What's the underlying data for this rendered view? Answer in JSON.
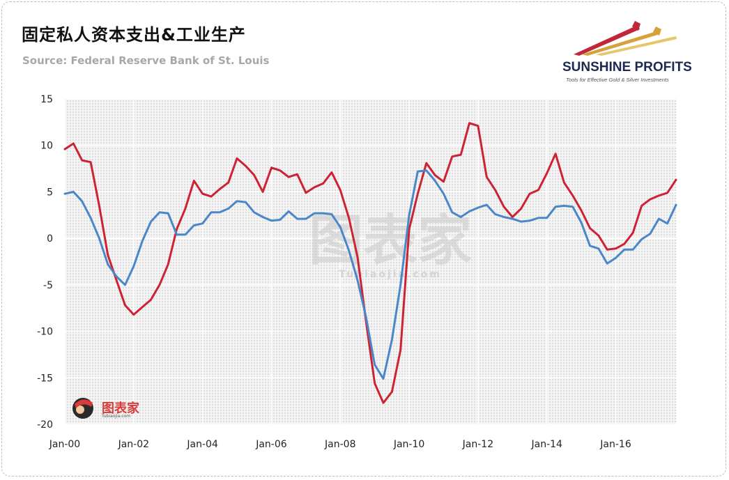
{
  "header": {
    "title": "固定私人资本支出&工业生产",
    "source": "Source: Federal Reserve Bank of St. Louis"
  },
  "logo": {
    "name": "SUNSHINE PROFITS",
    "tagline": "Tools for Effective Gold & Silver Investments"
  },
  "watermark": {
    "text": "图表家",
    "sub": "Tubiaojia.com"
  },
  "colors": {
    "series_red": "#cc2233",
    "series_blue": "#4a86c8",
    "plot_bg": "#eeeeee",
    "gridline": "#ffffff"
  },
  "chart_data": {
    "type": "line",
    "title": "固定私人资本支出&工业生产",
    "xlabel": "",
    "ylabel": "",
    "ylim": [
      -20,
      15
    ],
    "yticks": [
      15,
      10,
      5,
      0,
      -5,
      -10,
      -15,
      -20
    ],
    "xlim": [
      2000.0,
      2017.75
    ],
    "xticks": [
      {
        "x": 2000,
        "label": "Jan-00"
      },
      {
        "x": 2002,
        "label": "Jan-02"
      },
      {
        "x": 2004,
        "label": "Jan-04"
      },
      {
        "x": 2006,
        "label": "Jan-06"
      },
      {
        "x": 2008,
        "label": "Jan-08"
      },
      {
        "x": 2010,
        "label": "Jan-10"
      },
      {
        "x": 2012,
        "label": "Jan-12"
      },
      {
        "x": 2014,
        "label": "Jan-14"
      },
      {
        "x": 2016,
        "label": "Jan-16"
      }
    ],
    "grid": true,
    "legend": "none",
    "x": [
      2000.0,
      2000.25,
      2000.5,
      2000.75,
      2001.0,
      2001.25,
      2001.5,
      2001.75,
      2002.0,
      2002.25,
      2002.5,
      2002.75,
      2003.0,
      2003.25,
      2003.5,
      2003.75,
      2004.0,
      2004.25,
      2004.5,
      2004.75,
      2005.0,
      2005.25,
      2005.5,
      2005.75,
      2006.0,
      2006.25,
      2006.5,
      2006.75,
      2007.0,
      2007.25,
      2007.5,
      2007.75,
      2008.0,
      2008.25,
      2008.5,
      2008.75,
      2009.0,
      2009.25,
      2009.5,
      2009.75,
      2010.0,
      2010.25,
      2010.5,
      2010.75,
      2011.0,
      2011.25,
      2011.5,
      2011.75,
      2012.0,
      2012.25,
      2012.5,
      2012.75,
      2013.0,
      2013.25,
      2013.5,
      2013.75,
      2014.0,
      2014.25,
      2014.5,
      2014.75,
      2015.0,
      2015.25,
      2015.5,
      2015.75,
      2016.0,
      2016.25,
      2016.5,
      2016.75,
      2017.0,
      2017.25,
      2017.5,
      2017.75
    ],
    "series": [
      {
        "color": "#cc2233",
        "values": [
          9.6,
          10.2,
          8.4,
          8.2,
          3.5,
          -1.8,
          -4.5,
          -7.2,
          -8.2,
          -7.4,
          -6.6,
          -5.0,
          -2.8,
          1.0,
          3.2,
          6.2,
          4.8,
          4.5,
          5.3,
          6.0,
          8.6,
          7.8,
          6.8,
          5.0,
          7.6,
          7.3,
          6.6,
          6.9,
          4.9,
          5.5,
          5.9,
          7.1,
          5.2,
          2.2,
          -2.0,
          -9.0,
          -15.6,
          -17.7,
          -16.5,
          -12.0,
          1.0,
          4.8,
          8.1,
          6.8,
          6.1,
          8.8,
          9.0,
          12.4,
          12.1,
          6.6,
          5.2,
          3.4,
          2.3,
          3.2,
          4.8,
          5.2,
          7.0,
          9.1,
          6.0,
          4.6,
          3.0,
          1.1,
          0.3,
          -1.2,
          -1.1,
          -0.6,
          0.6,
          3.5,
          4.2,
          4.6,
          4.9,
          6.3
        ]
      },
      {
        "color": "#4a86c8",
        "values": [
          4.8,
          5.0,
          4.0,
          2.2,
          0.0,
          -2.8,
          -4.1,
          -5.0,
          -3.0,
          -0.3,
          1.8,
          2.8,
          2.7,
          0.4,
          0.4,
          1.4,
          1.6,
          2.8,
          2.8,
          3.2,
          4.0,
          3.9,
          2.8,
          2.3,
          1.9,
          2.0,
          2.9,
          2.1,
          2.1,
          2.7,
          2.7,
          2.6,
          1.2,
          -1.3,
          -4.5,
          -8.5,
          -13.6,
          -15.1,
          -10.9,
          -5.0,
          2.5,
          7.2,
          7.3,
          6.2,
          4.8,
          2.8,
          2.3,
          2.9,
          3.3,
          3.6,
          2.6,
          2.3,
          2.1,
          1.8,
          1.9,
          2.2,
          2.2,
          3.4,
          3.5,
          3.4,
          1.7,
          -0.8,
          -1.1,
          -2.7,
          -2.1,
          -1.2,
          -1.2,
          -0.1,
          0.5,
          2.1,
          1.6,
          3.6
        ]
      }
    ]
  }
}
